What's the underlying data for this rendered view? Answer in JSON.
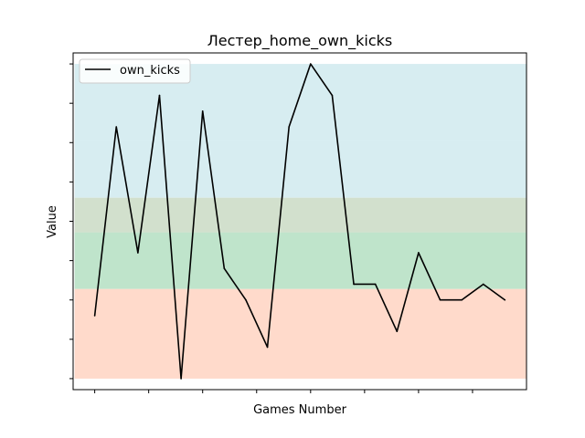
{
  "chart_data": {
    "type": "line",
    "title": "Лестер_home_own_kicks",
    "xlabel": "Games Number",
    "ylabel": "Value",
    "x": [
      0,
      1,
      2,
      3,
      4,
      5,
      6,
      7,
      8,
      9,
      10,
      11,
      12,
      13,
      14,
      15,
      16,
      17,
      18,
      19
    ],
    "series": [
      {
        "name": "own_kicks",
        "values": [
          2,
          8,
          4,
          9,
          0,
          8.5,
          3.5,
          2.5,
          1,
          8,
          10,
          9,
          3,
          3,
          1.5,
          4,
          2.5,
          2.5,
          3,
          2.5
        ],
        "color": "#000000"
      }
    ],
    "xlim": [
      -1,
      20
    ],
    "ylim": [
      -0.35,
      10.35
    ],
    "bands": [
      {
        "from": 0,
        "to": 2.85,
        "color": "#ffdacb"
      },
      {
        "from": 2.85,
        "to": 4.65,
        "color": "#bfe4cb"
      },
      {
        "from": 4.65,
        "to": 5.75,
        "color": "#d2e0cd"
      },
      {
        "from": 5.75,
        "to": 7.55,
        "color": "#d7edf1"
      }
    ],
    "band_range": [
      0,
      7.55
    ],
    "y_axis_labels_visible": false,
    "x_axis_labels_visible": false,
    "grid": false,
    "legend": "top-left"
  }
}
